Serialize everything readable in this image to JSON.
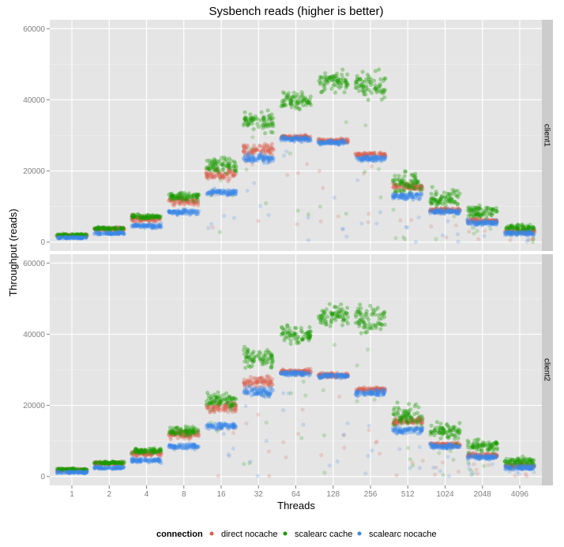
{
  "chart_data": {
    "type": "scatter",
    "title": "Sysbench reads (higher is better)",
    "xlabel": "Threads",
    "ylabel": "Throughput (reads)",
    "categories": [
      "1",
      "2",
      "4",
      "8",
      "16",
      "32",
      "64",
      "128",
      "256",
      "512",
      "1024",
      "2048",
      "4096"
    ],
    "ylim": [
      -2500,
      62500
    ],
    "yticks": [
      0,
      20000,
      40000,
      60000
    ],
    "grid": true,
    "facets": [
      "client1",
      "client2"
    ],
    "legend": {
      "title": "connection",
      "position": "bottom"
    },
    "series": [
      {
        "name": "direct nocache",
        "color": "#d9604f",
        "center": {
          "client1": [
            1800,
            3700,
            6500,
            11500,
            19000,
            26000,
            29500,
            28500,
            24500,
            15500,
            9000,
            6000,
            3000
          ],
          "client2": [
            1800,
            3700,
            6500,
            11800,
            19500,
            26500,
            29500,
            28500,
            24500,
            15500,
            9000,
            6000,
            3000
          ]
        },
        "spread": [
          600,
          700,
          1300,
          1500,
          2200,
          2300,
          900,
          900,
          900,
          1300,
          900,
          900,
          900
        ]
      },
      {
        "name": "scalearc cache",
        "color": "#1a9a00",
        "center": {
          "client1": [
            2000,
            3800,
            7200,
            12800,
            21500,
            34000,
            40000,
            45000,
            44000,
            16500,
            12500,
            8500,
            4000
          ],
          "client2": [
            2000,
            3900,
            7200,
            12800,
            21500,
            33500,
            40000,
            45500,
            44500,
            17000,
            12500,
            8500,
            4200
          ]
        },
        "spread": [
          500,
          600,
          1000,
          1800,
          3500,
          3800,
          3500,
          3800,
          6000,
          4500,
          3500,
          2500,
          1600
        ]
      },
      {
        "name": "scalearc nocache",
        "color": "#3a86e8",
        "center": {
          "client1": [
            1200,
            2500,
            4500,
            8500,
            14000,
            23500,
            29000,
            28000,
            23500,
            13000,
            8500,
            5500,
            2500
          ],
          "client2": [
            1200,
            2500,
            4500,
            8500,
            14200,
            23800,
            29000,
            28300,
            23500,
            13000,
            8500,
            5500,
            2500
          ]
        },
        "spread": [
          400,
          500,
          900,
          1000,
          1200,
          1900,
          1000,
          900,
          1200,
          1400,
          1000,
          1000,
          1000
        ]
      }
    ]
  }
}
